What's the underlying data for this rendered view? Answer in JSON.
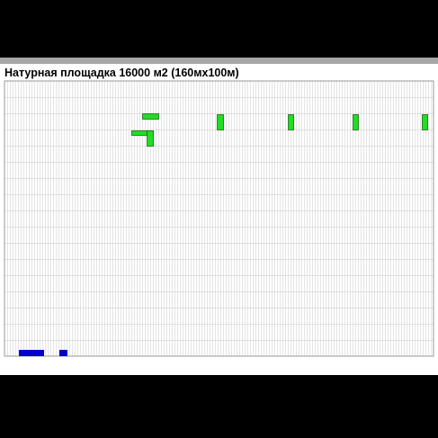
{
  "title": "Натурная площадка 16000 м2 (160мх100м)",
  "colors": {
    "background": "#000000",
    "panel": "#ffffff",
    "header_strip": "#a6a6a6",
    "grid_line": "#c8c8c8",
    "green_marker": "#22dd22",
    "green_marker_stroke": "#1a6b1a",
    "blue_marker": "#0000cc"
  },
  "markers": {
    "green_count": 7,
    "blue_count": 2
  }
}
